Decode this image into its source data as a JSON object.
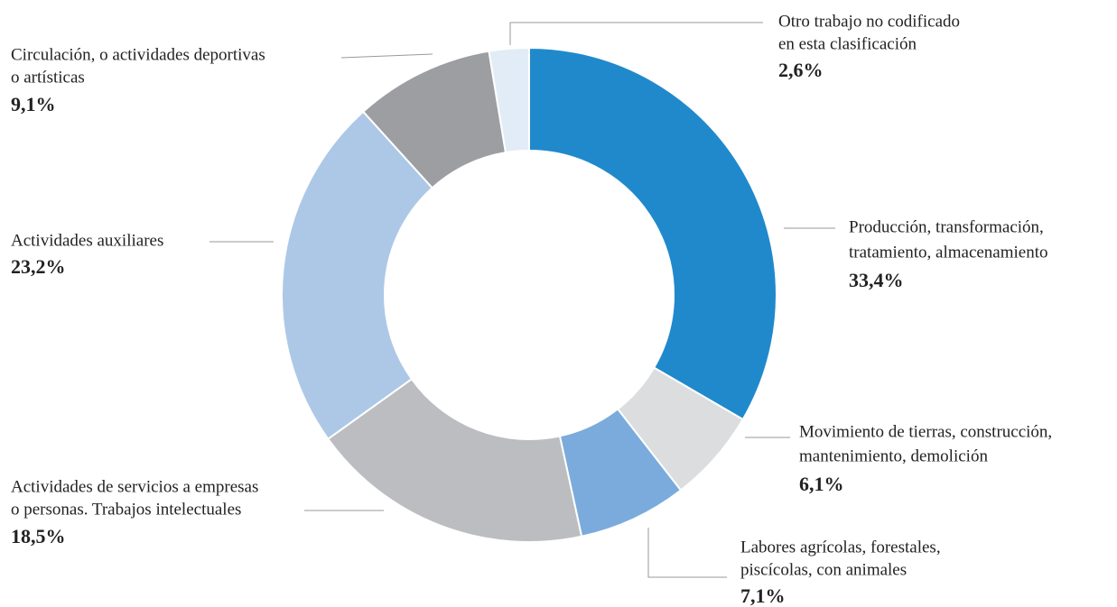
{
  "chart_data": {
    "type": "donut",
    "categories": [
      [
        "Producción, transformación,",
        "tratamiento, almacenamiento"
      ],
      [
        "Movimiento de tierras, construcción,",
        "mantenimiento, demolición"
      ],
      [
        "Labores agrícolas, forestales,",
        "piscícolas, con animales"
      ],
      [
        "Actividades de servicios a empresas",
        "o personas. Trabajos intelectuales"
      ],
      [
        "Actividades auxiliares"
      ],
      [
        "Circulación, o actividades deportivas",
        "o artísticas"
      ],
      [
        "Otro trabajo no codificado",
        "en esta clasificación"
      ]
    ],
    "values": [
      33.4,
      6.1,
      7.1,
      18.5,
      23.2,
      9.1,
      2.6
    ],
    "value_labels": [
      "33,4%",
      "6,1%",
      "7,1%",
      "18,5%",
      "23,2%",
      "9,1%",
      "2,6%"
    ],
    "colors": [
      "#2089cc",
      "#dcdddf",
      "#7aabdc",
      "#bcbdc1",
      "#adc8e6",
      "#9d9ea1",
      "#e2ecf7"
    ]
  }
}
